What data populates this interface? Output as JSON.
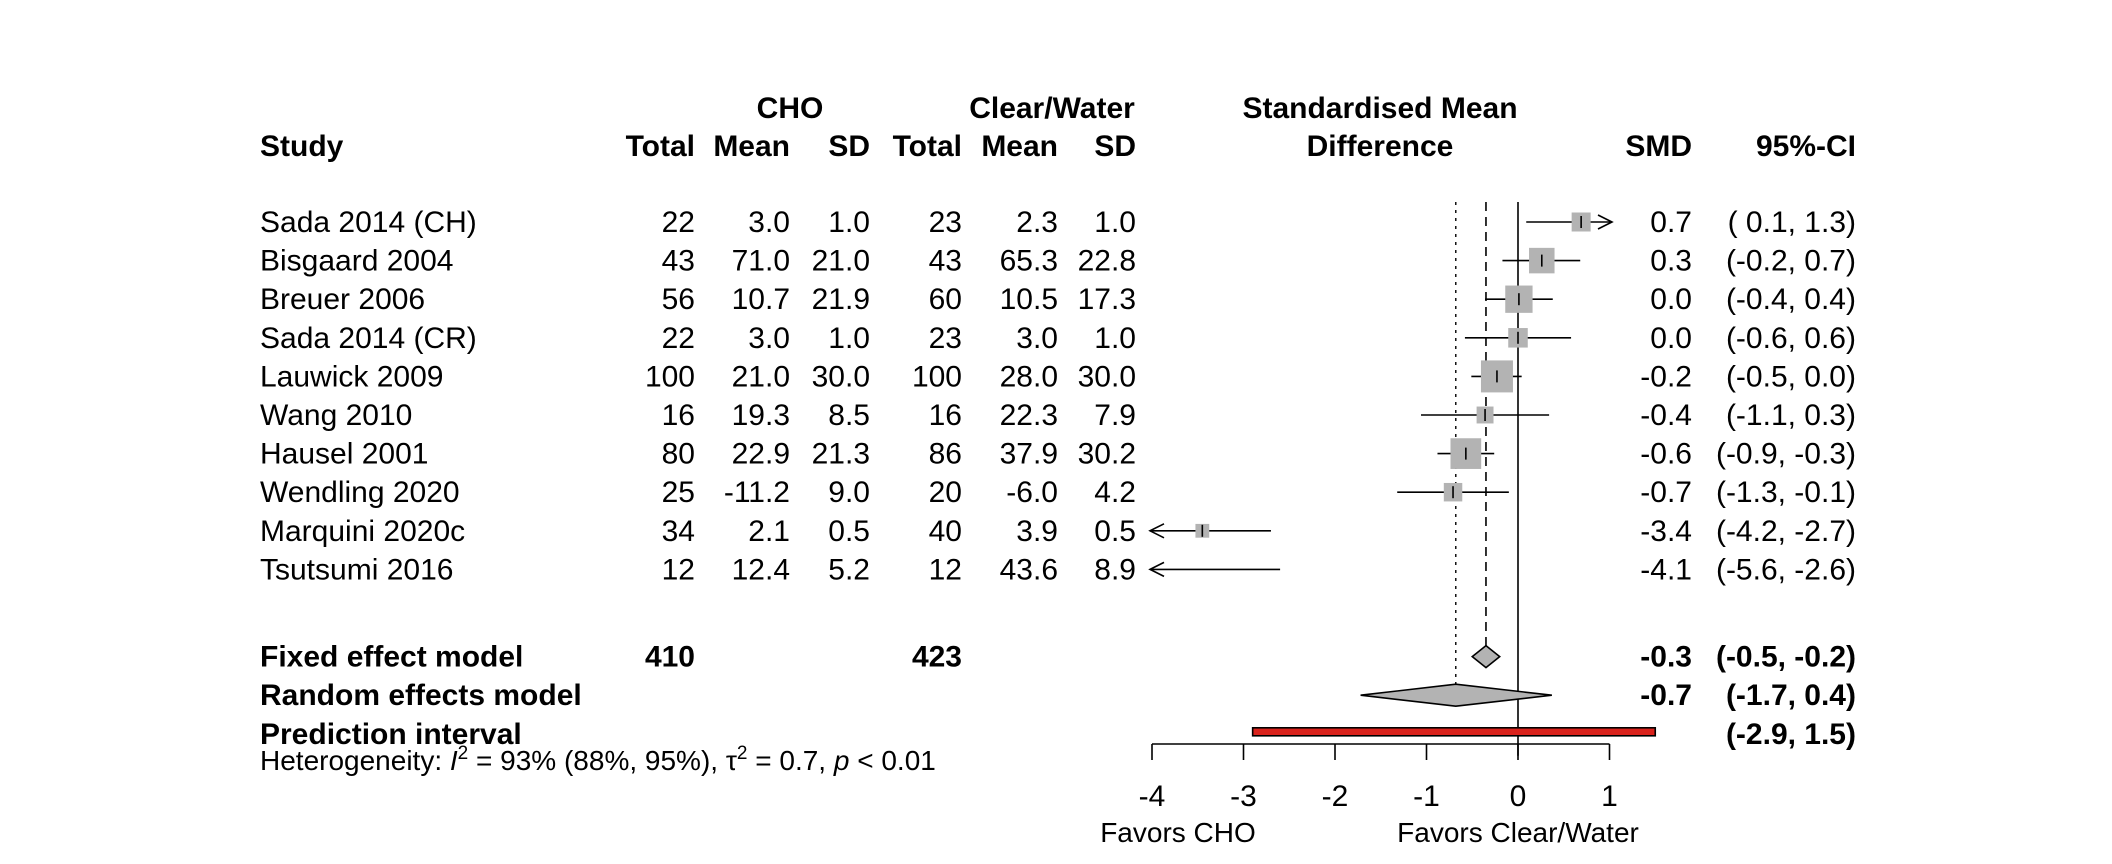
{
  "chart_data": {
    "type": "forest",
    "headers": {
      "group1": "CHO",
      "group2": "Clear/Water",
      "effect_title_line1": "Standardised Mean",
      "effect_title_line2": "Difference",
      "study": "Study",
      "total": "Total",
      "mean": "Mean",
      "sd": "SD",
      "smd": "SMD",
      "ci": "95%-CI"
    },
    "studies": [
      {
        "study": "Sada 2014 (CH)",
        "n1": "22",
        "mean1": "3.0",
        "sd1": "1.0",
        "n2": "23",
        "mean2": "2.3",
        "sd2": "1.0",
        "smd_text": "0.7",
        "ci_text": "( 0.1,  1.3)",
        "smd": 0.69,
        "lo": 0.09,
        "hi": 1.29,
        "weight": 0.5
      },
      {
        "study": "Bisgaard 2004",
        "n1": "43",
        "mean1": "71.0",
        "sd1": "21.0",
        "n2": "43",
        "mean2": "65.3",
        "sd2": "22.8",
        "smd_text": "0.3",
        "ci_text": "(-0.2,  0.7)",
        "smd": 0.26,
        "lo": -0.17,
        "hi": 0.68,
        "weight": 0.75
      },
      {
        "study": "Breuer 2006",
        "n1": "56",
        "mean1": "10.7",
        "sd1": "21.9",
        "n2": "60",
        "mean2": "10.5",
        "sd2": "17.3",
        "smd_text": "0.0",
        "ci_text": "(-0.4,  0.4)",
        "smd": 0.01,
        "lo": -0.36,
        "hi": 0.38,
        "weight": 0.82
      },
      {
        "study": "Sada 2014 (CR)",
        "n1": "22",
        "mean1": "3.0",
        "sd1": "1.0",
        "n2": "23",
        "mean2": "3.0",
        "sd2": "1.0",
        "smd_text": "0.0",
        "ci_text": "(-0.6,  0.6)",
        "smd": 0.0,
        "lo": -0.58,
        "hi": 0.58,
        "weight": 0.52
      },
      {
        "study": "Lauwick 2009",
        "n1": "100",
        "mean1": "21.0",
        "sd1": "30.0",
        "n2": "100",
        "mean2": "28.0",
        "sd2": "30.0",
        "smd_text": "-0.2",
        "ci_text": "(-0.5,  0.0)",
        "smd": -0.23,
        "lo": -0.51,
        "hi": 0.04,
        "weight": 1.0
      },
      {
        "study": "Wang 2010",
        "n1": "16",
        "mean1": "19.3",
        "sd1": "8.5",
        "n2": "16",
        "mean2": "22.3",
        "sd2": "7.9",
        "smd_text": "-0.4",
        "ci_text": "(-1.1,  0.3)",
        "smd": -0.36,
        "lo": -1.06,
        "hi": 0.34,
        "weight": 0.42
      },
      {
        "study": "Hausel 2001",
        "n1": "80",
        "mean1": "22.9",
        "sd1": "21.3",
        "n2": "86",
        "mean2": "37.9",
        "sd2": "30.2",
        "smd_text": "-0.6",
        "ci_text": "(-0.9, -0.3)",
        "smd": -0.57,
        "lo": -0.88,
        "hi": -0.26,
        "weight": 0.95
      },
      {
        "study": "Wendling 2020",
        "n1": "25",
        "mean1": "-11.2",
        "sd1": "9.0",
        "n2": "20",
        "mean2": "-6.0",
        "sd2": "4.2",
        "smd_text": "-0.7",
        "ci_text": "(-1.3, -0.1)",
        "smd": -0.71,
        "lo": -1.32,
        "hi": -0.1,
        "weight": 0.48
      },
      {
        "study": "Marquini 2020c",
        "n1": "34",
        "mean1": "2.1",
        "sd1": "0.5",
        "n2": "40",
        "mean2": "3.9",
        "sd2": "0.5",
        "smd_text": "-3.4",
        "ci_text": "(-4.2, -2.7)",
        "smd": -3.45,
        "lo": -4.2,
        "hi": -2.7,
        "weight": 0.3
      },
      {
        "study": "Tsutsumi 2016",
        "n1": "12",
        "mean1": "12.4",
        "sd1": "5.2",
        "n2": "12",
        "mean2": "43.6",
        "sd2": "8.9",
        "smd_text": "-4.1",
        "ci_text": "(-5.6, -2.6)",
        "smd": -4.1,
        "lo": -5.6,
        "hi": -2.6,
        "weight": 0.0
      }
    ],
    "fixed": {
      "label": "Fixed effect model",
      "n1": "410",
      "n2": "423",
      "smd_text": "-0.3",
      "ci_text": "(-0.5, -0.2)",
      "smd": -0.35,
      "lo": -0.5,
      "hi": -0.2
    },
    "random": {
      "label": "Random effects model",
      "smd_text": "-0.7",
      "ci_text": "(-1.7,  0.4)",
      "smd": -0.68,
      "lo": -1.72,
      "hi": 0.37
    },
    "prediction": {
      "label": "Prediction interval",
      "ci_text": "(-2.9,  1.5)",
      "lo": -2.9,
      "hi": 1.5
    },
    "heterogeneity": {
      "prefix": "Heterogeneity: ",
      "i2_symbol": "I",
      "i2_sup": "2",
      "i2_rest": " = 93% (88%, 95%), ",
      "tau_symbol": "τ",
      "tau_sup": "2",
      "tau_rest": " = 0.7, ",
      "p_symbol": "p",
      "p_rest": " < 0.01"
    },
    "axis": {
      "ticks": [
        -4,
        -3,
        -2,
        -1,
        0,
        1
      ],
      "tick_labels": [
        "-4",
        "-3",
        "-2",
        "-1",
        "0",
        "1"
      ],
      "xlim": [
        -4,
        1
      ],
      "favors_left": "Favors CHO",
      "favors_right": "Favors Clear/Water"
    },
    "colors": {
      "square": "#b3b3b3",
      "diamond": "#b3b3b3",
      "prediction": "#d9221c"
    }
  }
}
